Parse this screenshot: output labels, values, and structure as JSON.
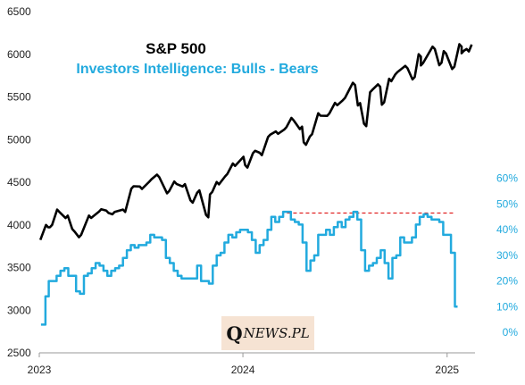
{
  "chart_data": {
    "type": "line",
    "title": "S&P 500",
    "subtitle": "Investors Intelligence: Bulls - Bears",
    "x_tick_labels": [
      "2023",
      "2024",
      "2025"
    ],
    "x_range": [
      "2023-01-01",
      "2025-02-20"
    ],
    "y_left": {
      "ticks": [
        "2500",
        "3000",
        "3500",
        "4000",
        "4500",
        "5000",
        "5500",
        "6000",
        "6500"
      ],
      "range": [
        2500,
        6500
      ]
    },
    "y_right": {
      "ticks": [
        "0%",
        "10%",
        "20%",
        "30%",
        "40%",
        "50%",
        "60%"
      ],
      "range": [
        -8,
        70
      ]
    },
    "reference_line": {
      "value": 46.5,
      "axis": "right",
      "style": "dashed",
      "color": "#e02020",
      "x_from": "2024-03-20",
      "x_to": "2025-01-15"
    },
    "series": [
      {
        "axis": "left",
        "color": "#000000",
        "points": [
          [
            "2023-01-03",
            3824
          ],
          [
            "2023-01-13",
            3999
          ],
          [
            "2023-01-20",
            3972
          ],
          [
            "2023-02-02",
            4180
          ],
          [
            "2023-02-17",
            4080
          ],
          [
            "2023-03-01",
            3951
          ],
          [
            "2023-03-13",
            3855
          ],
          [
            "2023-03-31",
            4109
          ],
          [
            "2023-04-18",
            4155
          ],
          [
            "2023-05-01",
            4168
          ],
          [
            "2023-05-12",
            4124
          ],
          [
            "2023-05-31",
            4180
          ],
          [
            "2023-06-15",
            4425
          ],
          [
            "2023-06-30",
            4450
          ],
          [
            "2023-07-17",
            4505
          ],
          [
            "2023-07-31",
            4589
          ],
          [
            "2023-08-18",
            4370
          ],
          [
            "2023-08-31",
            4508
          ],
          [
            "2023-09-15",
            4450
          ],
          [
            "2023-09-29",
            4288
          ],
          [
            "2023-10-11",
            4376
          ],
          [
            "2023-10-27",
            4117
          ],
          [
            "2023-11-03",
            4358
          ],
          [
            "2023-11-15",
            4503
          ],
          [
            "2023-11-30",
            4568
          ],
          [
            "2023-12-14",
            4720
          ],
          [
            "2023-12-29",
            4770
          ],
          [
            "2024-01-05",
            4700
          ],
          [
            "2024-01-19",
            4840
          ],
          [
            "2024-01-31",
            4846
          ],
          [
            "2024-02-15",
            5030
          ],
          [
            "2024-02-29",
            5096
          ],
          [
            "2024-03-15",
            5117
          ],
          [
            "2024-03-28",
            5254
          ],
          [
            "2024-04-12",
            5123
          ],
          [
            "2024-04-19",
            4967
          ],
          [
            "2024-04-30",
            5035
          ],
          [
            "2024-05-15",
            5308
          ],
          [
            "2024-05-31",
            5278
          ],
          [
            "2024-06-14",
            5431
          ],
          [
            "2024-06-28",
            5460
          ],
          [
            "2024-07-16",
            5667
          ],
          [
            "2024-07-25",
            5399
          ],
          [
            "2024-08-05",
            5186
          ],
          [
            "2024-08-16",
            5554
          ],
          [
            "2024-08-30",
            5648
          ],
          [
            "2024-09-06",
            5408
          ],
          [
            "2024-09-19",
            5713
          ],
          [
            "2024-09-30",
            5762
          ],
          [
            "2024-10-18",
            5864
          ],
          [
            "2024-10-31",
            5705
          ],
          [
            "2024-11-11",
            6001
          ],
          [
            "2024-11-15",
            5870
          ],
          [
            "2024-12-06",
            6090
          ],
          [
            "2024-12-18",
            5872
          ],
          [
            "2024-12-26",
            6037
          ],
          [
            "2025-01-10",
            5827
          ],
          [
            "2025-01-23",
            6118
          ],
          [
            "2025-01-27",
            6012
          ],
          [
            "2025-02-05",
            6061
          ],
          [
            "2025-02-14",
            6114
          ]
        ]
      },
      {
        "axis": "right",
        "color": "#22aade",
        "points": [
          [
            "2023-01-04",
            3
          ],
          [
            "2023-01-12",
            14
          ],
          [
            "2023-01-18",
            20
          ],
          [
            "2023-02-01",
            22
          ],
          [
            "2023-02-08",
            24
          ],
          [
            "2023-02-15",
            25
          ],
          [
            "2023-02-22",
            22
          ],
          [
            "2023-03-01",
            22
          ],
          [
            "2023-03-08",
            16
          ],
          [
            "2023-03-15",
            15
          ],
          [
            "2023-03-22",
            22
          ],
          [
            "2023-03-29",
            23
          ],
          [
            "2023-04-05",
            25
          ],
          [
            "2023-04-12",
            27
          ],
          [
            "2023-04-19",
            26
          ],
          [
            "2023-04-26",
            24
          ],
          [
            "2023-05-03",
            22
          ],
          [
            "2023-05-10",
            24
          ],
          [
            "2023-05-17",
            25
          ],
          [
            "2023-05-24",
            26
          ],
          [
            "2023-05-31",
            29
          ],
          [
            "2023-06-07",
            32
          ],
          [
            "2023-06-14",
            34
          ],
          [
            "2023-06-21",
            33
          ],
          [
            "2023-06-28",
            34
          ],
          [
            "2023-07-05",
            34
          ],
          [
            "2023-07-12",
            35
          ],
          [
            "2023-07-19",
            38
          ],
          [
            "2023-07-26",
            37
          ],
          [
            "2023-08-02",
            37
          ],
          [
            "2023-08-09",
            36
          ],
          [
            "2023-08-16",
            29
          ],
          [
            "2023-08-23",
            27
          ],
          [
            "2023-08-30",
            24
          ],
          [
            "2023-09-06",
            22
          ],
          [
            "2023-09-13",
            21
          ],
          [
            "2023-09-20",
            21
          ],
          [
            "2023-09-27",
            21
          ],
          [
            "2023-10-04",
            21
          ],
          [
            "2023-10-11",
            26
          ],
          [
            "2023-10-18",
            20
          ],
          [
            "2023-10-25",
            20
          ],
          [
            "2023-11-01",
            19
          ],
          [
            "2023-11-08",
            26
          ],
          [
            "2023-11-15",
            30
          ],
          [
            "2023-11-22",
            31
          ],
          [
            "2023-11-29",
            35
          ],
          [
            "2023-12-06",
            38
          ],
          [
            "2023-12-13",
            37
          ],
          [
            "2023-12-20",
            39
          ],
          [
            "2023-12-27",
            40
          ],
          [
            "2024-01-03",
            40
          ],
          [
            "2024-01-10",
            39
          ],
          [
            "2024-01-17",
            36
          ],
          [
            "2024-01-24",
            31
          ],
          [
            "2024-01-31",
            34
          ],
          [
            "2024-02-07",
            36
          ],
          [
            "2024-02-14",
            40
          ],
          [
            "2024-02-21",
            45
          ],
          [
            "2024-02-28",
            43
          ],
          [
            "2024-03-06",
            45
          ],
          [
            "2024-03-13",
            47
          ],
          [
            "2024-03-20",
            47
          ],
          [
            "2024-03-27",
            44
          ],
          [
            "2024-04-03",
            43
          ],
          [
            "2024-04-10",
            42
          ],
          [
            "2024-04-17",
            35
          ],
          [
            "2024-04-24",
            24
          ],
          [
            "2024-05-01",
            28
          ],
          [
            "2024-05-08",
            30
          ],
          [
            "2024-05-15",
            38
          ],
          [
            "2024-05-22",
            38
          ],
          [
            "2024-05-29",
            40
          ],
          [
            "2024-06-05",
            38
          ],
          [
            "2024-06-12",
            41
          ],
          [
            "2024-06-19",
            43
          ],
          [
            "2024-06-26",
            41
          ],
          [
            "2024-07-03",
            44
          ],
          [
            "2024-07-10",
            45
          ],
          [
            "2024-07-17",
            47
          ],
          [
            "2024-07-24",
            44
          ],
          [
            "2024-07-31",
            32
          ],
          [
            "2024-08-07",
            24
          ],
          [
            "2024-08-14",
            26
          ],
          [
            "2024-08-21",
            27
          ],
          [
            "2024-08-28",
            29
          ],
          [
            "2024-09-04",
            32
          ],
          [
            "2024-09-11",
            27
          ],
          [
            "2024-09-18",
            21
          ],
          [
            "2024-09-25",
            29
          ],
          [
            "2024-10-02",
            30
          ],
          [
            "2024-10-09",
            37
          ],
          [
            "2024-10-16",
            35
          ],
          [
            "2024-10-23",
            35
          ],
          [
            "2024-10-30",
            37
          ],
          [
            "2024-11-06",
            42
          ],
          [
            "2024-11-13",
            45
          ],
          [
            "2024-11-20",
            46
          ],
          [
            "2024-11-27",
            45
          ],
          [
            "2024-12-04",
            44
          ],
          [
            "2024-12-11",
            44
          ],
          [
            "2024-12-18",
            43
          ],
          [
            "2024-12-25",
            38
          ],
          [
            "2025-01-01",
            38
          ],
          [
            "2025-01-08",
            31
          ],
          [
            "2025-01-15",
            10
          ]
        ]
      }
    ]
  },
  "logo": {
    "initial": "Q",
    "rest": "NEWS.PL"
  },
  "colors": {
    "sp500": "#000000",
    "bulls_bears": "#22aade",
    "reference": "#e02020",
    "logo_bg": "#f6e3d3"
  }
}
